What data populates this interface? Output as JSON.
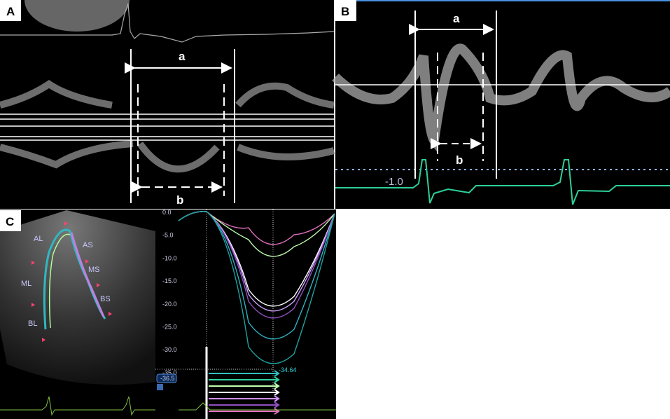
{
  "panels": {
    "A": {
      "label": "A",
      "a": "a",
      "b": "b"
    },
    "B": {
      "label": "B",
      "a": "a",
      "b": "b",
      "scale": "-1.0"
    },
    "C": {
      "label": "C",
      "segments": [
        "AL",
        "AS",
        "ML",
        "MS",
        "BS",
        "BL"
      ],
      "yticks": [
        "0.0",
        "-5.0",
        "-10.0",
        "-15.0",
        "-20.0",
        "-25.0",
        "-30.0",
        "-35.0"
      ],
      "min_label": "-36.5",
      "peak_label": "-34.64"
    }
  }
}
